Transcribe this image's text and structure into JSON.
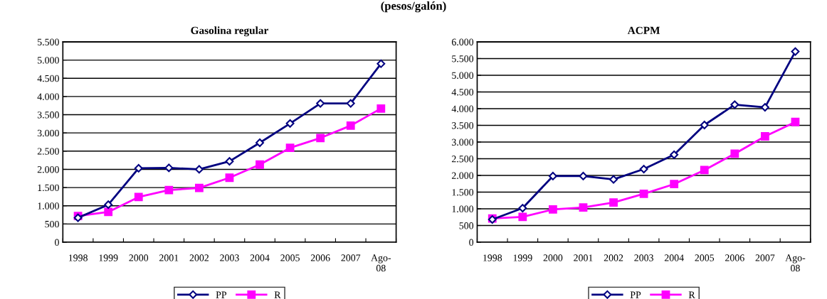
{
  "chart_data": [
    {
      "type": "line",
      "title": "Gasolina regular",
      "annotations": [
        "(pesos/galón)"
      ],
      "categories": [
        "1998",
        "1999",
        "2000",
        "2001",
        "2002",
        "2003",
        "2004",
        "2005",
        "2006",
        "2007",
        "Ago-08"
      ],
      "series": [
        {
          "name": "PP",
          "color": "#000080",
          "marker": "diamond",
          "values": [
            670,
            1030,
            2030,
            2040,
            2000,
            2220,
            2730,
            3260,
            3810,
            3810,
            4900
          ]
        },
        {
          "name": "R",
          "color": "#ff00ff",
          "marker": "square",
          "values": [
            720,
            830,
            1240,
            1430,
            1490,
            1770,
            2130,
            2590,
            2860,
            3200,
            3670
          ]
        }
      ],
      "ylim": [
        0,
        5500
      ],
      "yticks": [
        0,
        500,
        {
          "value": 1000,
          "label": "1.000"
        },
        {
          "value": 1500,
          "label": "1.500"
        },
        {
          "value": 2000,
          "label": "2.000"
        },
        {
          "value": 2500,
          "label": "2.500"
        },
        {
          "value": 3000,
          "label": "3.000"
        },
        {
          "value": 3500,
          "label": "3.500"
        },
        {
          "value": 4000,
          "label": "4.000"
        },
        {
          "value": 4500,
          "label": "4.500"
        },
        {
          "value": 5000,
          "label": "5.000"
        },
        {
          "value": 5500,
          "label": "5.500"
        }
      ],
      "grid": "y",
      "legend": "bottom",
      "line_style": "solid"
    },
    {
      "type": "line",
      "title": "ACPM",
      "categories": [
        "1998",
        "1999",
        "2000",
        "2001",
        "2002",
        "2003",
        "2004",
        "2005",
        "2006",
        "2007",
        "Ago-08"
      ],
      "series": [
        {
          "name": "PP",
          "color": "#000080",
          "marker": "diamond",
          "values": [
            680,
            1020,
            1980,
            1980,
            1880,
            2190,
            2620,
            3510,
            4120,
            4040,
            5710
          ]
        },
        {
          "name": "R",
          "color": "#ff00ff",
          "marker": "square",
          "values": [
            710,
            760,
            980,
            1040,
            1190,
            1450,
            1740,
            2160,
            2650,
            3170,
            3600
          ]
        }
      ],
      "ylim": [
        0,
        6000
      ],
      "yticks": [
        0,
        500,
        {
          "value": 1000,
          "label": "1.000"
        },
        {
          "value": 1500,
          "label": "1.500"
        },
        {
          "value": 2000,
          "label": "2.000"
        },
        {
          "value": 2500,
          "label": "2.500"
        },
        {
          "value": 3000,
          "label": "3.000"
        },
        {
          "value": 3500,
          "label": "3.500"
        },
        {
          "value": 4000,
          "label": "4.000"
        },
        {
          "value": 4500,
          "label": "4.500"
        },
        {
          "value": 5000,
          "label": "5.000"
        },
        {
          "value": 5500,
          "label": "5.500"
        },
        {
          "value": 6000,
          "label": "6.000"
        }
      ],
      "grid": "y",
      "legend": "bottom",
      "line_style": "solid"
    }
  ]
}
